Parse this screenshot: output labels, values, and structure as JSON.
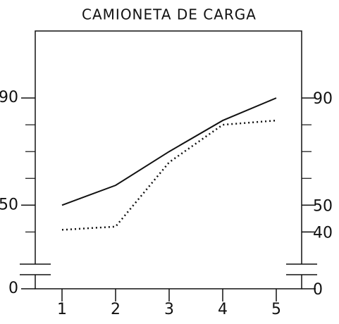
{
  "chart_data": {
    "type": "line",
    "title": "CAMIONETA DE CARGA",
    "categories": [
      "1",
      "2",
      "3",
      "4",
      "5"
    ],
    "series": [
      {
        "name": "solid",
        "color": "#111111",
        "style": "solid",
        "values": [
          50,
          57.4,
          70,
          81.6,
          90
        ]
      },
      {
        "name": "dotted",
        "color": "#111111",
        "style": "dotted",
        "values": [
          40.8,
          42,
          66,
          80,
          81.6
        ]
      }
    ],
    "ylim": [
      28,
      115
    ],
    "axis_break": true,
    "yticks": [
      0,
      50,
      90
    ],
    "y2ticks": [
      0,
      40,
      50,
      90
    ],
    "minor_yticks": [
      40,
      60,
      70,
      80
    ]
  }
}
